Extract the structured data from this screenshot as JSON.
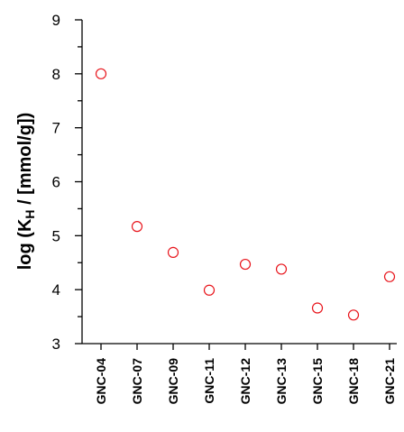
{
  "chart_data": {
    "type": "scatter",
    "title": "",
    "xlabel": "",
    "ylabel": {
      "prefix": "log (K",
      "subscript": "H",
      "suffix": " / [mmol/g])"
    },
    "categories": [
      "GNC-04",
      "GNC-07",
      "GNC-09",
      "GNC-11",
      "GNC-12",
      "GNC-13",
      "GNC-15",
      "GNC-18",
      "GNC-21"
    ],
    "values": [
      8.0,
      5.17,
      4.69,
      3.99,
      4.47,
      4.38,
      3.66,
      3.53,
      4.24
    ],
    "ylim": [
      3,
      9
    ],
    "yticks": [
      "3",
      "4",
      "5",
      "6",
      "7",
      "8",
      "9"
    ],
    "y_minor_step": 0.5,
    "marker": "open-circle",
    "marker_color": "#e8141b",
    "grid": false,
    "legend": "none"
  }
}
